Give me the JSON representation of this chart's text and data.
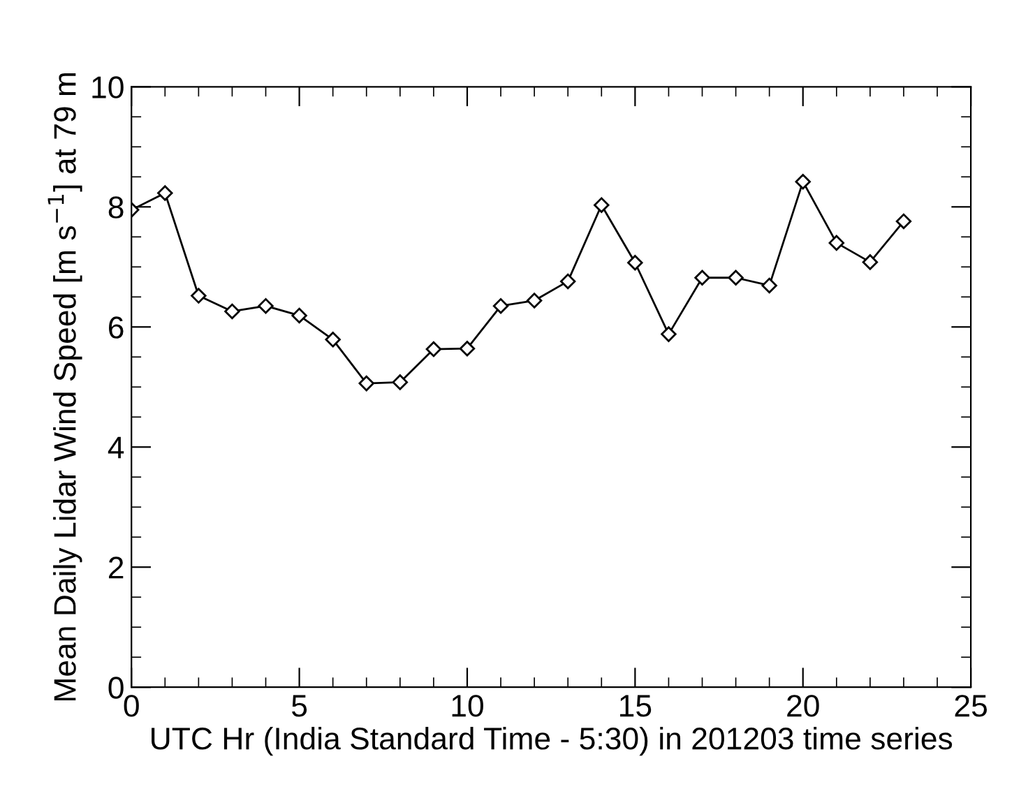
{
  "chart_data": {
    "type": "line",
    "xlabel": "UTC Hr (India Standard Time - 5:30) in 201203 time series",
    "ylabel": "Mean Daily Lidar Wind Speed [m s$^{−1}$] at 79 m",
    "x": [
      0,
      1,
      2,
      3,
      4,
      5,
      6,
      7,
      8,
      9,
      10,
      11,
      12,
      13,
      14,
      15,
      16,
      17,
      18,
      19,
      20,
      21,
      22,
      23
    ],
    "series": [
      {
        "color": "#000000",
        "values": [
          7.95,
          8.23,
          6.52,
          6.26,
          6.35,
          6.19,
          5.79,
          5.06,
          5.08,
          5.63,
          5.64,
          6.35,
          6.44,
          6.76,
          8.03,
          7.07,
          5.88,
          6.82,
          6.82,
          6.69,
          8.42,
          7.4,
          7.08,
          7.76
        ]
      }
    ],
    "xlim": [
      0,
      25
    ],
    "xticks": [
      0,
      5,
      10,
      15,
      20,
      25
    ],
    "ylim": [
      0,
      10
    ],
    "yticks": [
      0,
      2,
      4,
      6,
      8,
      10
    ],
    "marker": "diamond",
    "line_style": "solid",
    "grid": false,
    "legend": false
  }
}
